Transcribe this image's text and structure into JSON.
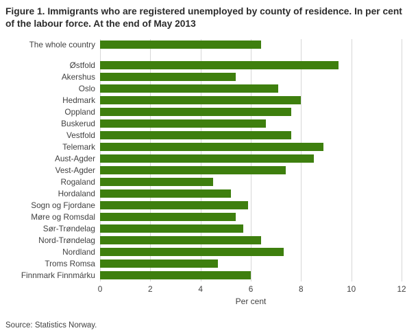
{
  "title": "Figure 1. Immigrants who are registered unemployed by county of residence. In per cent of the labour force. At the end of May 2013",
  "source": "Source: Statistics Norway.",
  "colors": {
    "bar": "#3e7f0e",
    "gridline": "#d6d6d6",
    "title_text": "#2b2b2b",
    "axis_text": "#404040"
  },
  "chart_data": {
    "type": "bar",
    "orientation": "horizontal",
    "title": "Figure 1. Immigrants who are registered unemployed by county of residence. In per cent of the labour force. At the end of May 2013",
    "xlabel": "Per cent",
    "ylabel": "",
    "xlim": [
      0,
      12
    ],
    "xticks": [
      0,
      2,
      4,
      6,
      8,
      10,
      12
    ],
    "grid": true,
    "legend": false,
    "gap_after_first": true,
    "categories": [
      "The whole country",
      "Østfold",
      "Akershus",
      "Oslo",
      "Hedmark",
      "Oppland",
      "Buskerud",
      "Vestfold",
      "Telemark",
      "Aust-Agder",
      "Vest-Agder",
      "Rogaland",
      "Hordaland",
      "Sogn og Fjordane",
      "Møre og Romsdal",
      "Sør-Trøndelag",
      "Nord-Trøndelag",
      "Nordland",
      "Troms Romsa",
      "Finnmark Finnmárku"
    ],
    "values": [
      6.4,
      9.5,
      5.4,
      7.1,
      8.0,
      7.6,
      6.6,
      7.6,
      8.9,
      8.5,
      7.4,
      4.5,
      5.2,
      5.9,
      5.4,
      5.7,
      6.4,
      7.3,
      4.7,
      6.0
    ]
  }
}
